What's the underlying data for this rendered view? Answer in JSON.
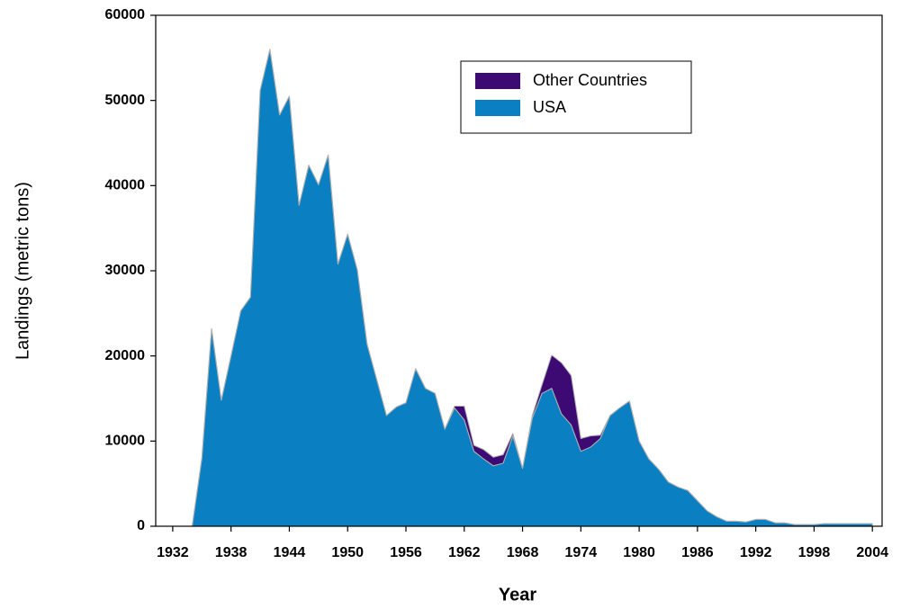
{
  "chart_data": {
    "type": "stacked_area",
    "x_label": "Year",
    "y_label": "Landings (metric tons)",
    "x": [
      1934,
      1935,
      1936,
      1937,
      1938,
      1939,
      1940,
      1941,
      1942,
      1943,
      1944,
      1945,
      1946,
      1947,
      1948,
      1949,
      1950,
      1951,
      1952,
      1953,
      1954,
      1955,
      1956,
      1957,
      1958,
      1959,
      1960,
      1961,
      1962,
      1963,
      1964,
      1965,
      1966,
      1967,
      1968,
      1969,
      1970,
      1971,
      1972,
      1973,
      1974,
      1975,
      1976,
      1977,
      1978,
      1979,
      1980,
      1981,
      1982,
      1983,
      1984,
      1985,
      1986,
      1987,
      1988,
      1989,
      1990,
      1991,
      1992,
      1993,
      1994,
      1995,
      1996,
      1997,
      1998,
      1999,
      2000,
      2001,
      2002,
      2003,
      2004
    ],
    "series": [
      {
        "name": "USA",
        "color": "#0a80c2",
        "values": [
          0,
          8000,
          23200,
          14800,
          20000,
          25300,
          26900,
          51200,
          56000,
          48300,
          50500,
          37700,
          42400,
          40100,
          43600,
          30800,
          34300,
          30100,
          21400,
          17200,
          13000,
          14000,
          14500,
          18500,
          16200,
          15600,
          11400,
          13900,
          12500,
          8800,
          7900,
          7100,
          7400,
          10600,
          6800,
          12700,
          15600,
          16200,
          13200,
          11900,
          8800,
          9300,
          10300,
          13000,
          13900,
          14700,
          10000,
          7900,
          6700,
          5200,
          4600,
          4200,
          3000,
          1800,
          1100,
          600,
          600,
          500,
          800,
          800,
          400,
          400,
          200,
          200,
          200,
          300,
          300,
          300,
          300,
          300,
          300
        ]
      },
      {
        "name": "Other Countries",
        "color": "#3d0a73",
        "values": [
          0,
          0,
          0,
          0,
          0,
          0,
          0,
          0,
          0,
          0,
          0,
          0,
          0,
          0,
          0,
          0,
          0,
          0,
          0,
          0,
          0,
          0,
          0,
          0,
          0,
          0,
          0,
          200,
          1600,
          700,
          1100,
          1000,
          1000,
          300,
          0,
          300,
          1000,
          3900,
          6000,
          5800,
          1500,
          1300,
          400,
          0,
          0,
          0,
          0,
          0,
          0,
          0,
          0,
          0,
          0,
          0,
          0,
          0,
          0,
          0,
          0,
          0,
          0,
          0,
          0,
          0,
          0,
          0,
          0,
          0,
          0,
          0,
          0
        ]
      }
    ],
    "xlim": [
      1930.25,
      2005
    ],
    "xticks": [
      1932,
      1938,
      1944,
      1950,
      1956,
      1962,
      1968,
      1974,
      1980,
      1986,
      1992,
      1998,
      2004
    ],
    "ylim": [
      0,
      60000
    ],
    "yticks": [
      0,
      10000,
      20000,
      30000,
      40000,
      50000,
      60000
    ]
  }
}
